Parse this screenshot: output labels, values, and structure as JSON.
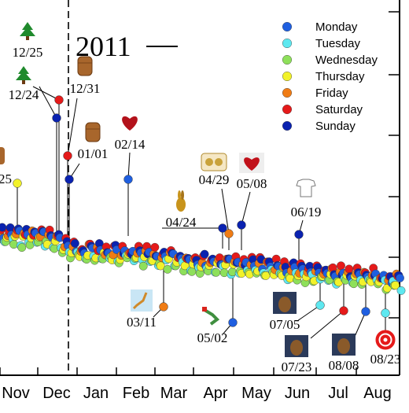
{
  "chart_data": {
    "type": "scatter",
    "year_label": "2011",
    "x_axis": {
      "tick_labels": [
        "Nov",
        "Dec",
        "Jan",
        "Feb",
        "Mar",
        "Apr",
        "May",
        "Jun",
        "Jul",
        "Aug"
      ]
    },
    "legend": {
      "placement": "top-right",
      "entries": [
        {
          "name": "Monday",
          "color": "#1f5fe0"
        },
        {
          "name": "Tuesday",
          "color": "#5ee8f0"
        },
        {
          "name": "Wednesday",
          "color": "#8ee05a"
        },
        {
          "name": "Thursday",
          "color": "#f2f22a"
        },
        {
          "name": "Friday",
          "color": "#f07c14"
        },
        {
          "name": "Saturday",
          "color": "#e51a1a"
        },
        {
          "name": "Sunday",
          "color": "#0a22b0"
        }
      ]
    },
    "year_boundary_label_position": "between Dec and Jan",
    "annotations": [
      {
        "label": "12/25",
        "icon": "christmas-tree-icon",
        "day": "Sunday"
      },
      {
        "label": "12/24",
        "icon": "christmas-tree-icon",
        "day": "Saturday"
      },
      {
        "label": "12/31",
        "icon": "wine-cork-icon",
        "day": "Saturday"
      },
      {
        "label": "01/01",
        "icon": "wine-cork-icon",
        "day": "Sunday"
      },
      {
        "label": "02/14",
        "icon": "heart-icon",
        "day": "Monday"
      },
      {
        "label": "04/24",
        "icon": "chocolate-bunny-icon",
        "day": "Sunday"
      },
      {
        "label": "04/29",
        "icon": "royal-wedding-crest-icon",
        "day": "Friday"
      },
      {
        "label": "05/08",
        "icon": "mom-heart-tattoo-icon",
        "day": "Sunday"
      },
      {
        "label": "06/19",
        "icon": "dad-tshirt-icon",
        "day": "Sunday"
      },
      {
        "label": "03/11",
        "icon": "japan-map-icon",
        "day": "Friday"
      },
      {
        "label": "05/02",
        "icon": "map-icon",
        "day": "Monday"
      },
      {
        "label": "07/05",
        "icon": "photo-icon",
        "day": "Tuesday"
      },
      {
        "label": "07/23",
        "icon": "photo-icon",
        "day": "Saturday"
      },
      {
        "label": "08/08",
        "icon": "photo-icon",
        "day": "Monday"
      },
      {
        "label": "08/23",
        "icon": "target-icon",
        "day": "Tuesday"
      }
    ],
    "partial_labels": [
      {
        "label": "25",
        "day": "Thursday"
      }
    ],
    "grid": false
  }
}
